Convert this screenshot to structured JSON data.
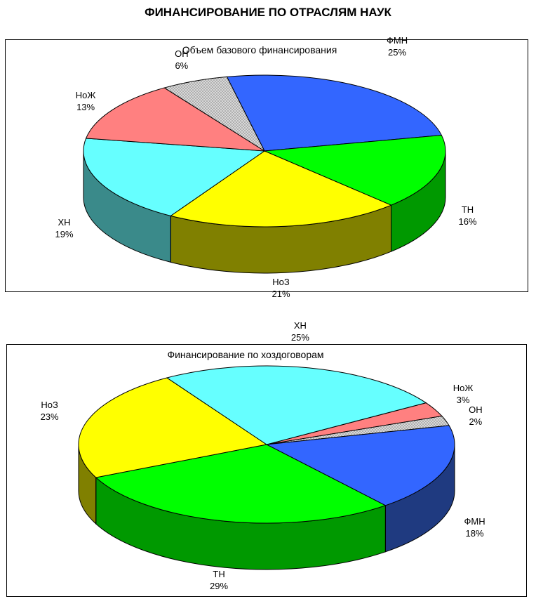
{
  "page_title": "ФИНАНСИРОВАНИЕ ПО ОТРАСЛЯМ НАУК",
  "chart_data": [
    {
      "type": "pie",
      "title": "Объем базового финансирования",
      "slices": [
        {
          "label": "ФМН",
          "value": 25,
          "pct": "25%",
          "color": "#3366ff",
          "side": "#1f3f99"
        },
        {
          "label": "ТН",
          "value": 16,
          "pct": "16%",
          "color": "#00ff00",
          "side": "#009900"
        },
        {
          "label": "НоЗ",
          "value": 21,
          "pct": "21%",
          "color": "#ffff00",
          "side": "#808000"
        },
        {
          "label": "ХН",
          "value": 19,
          "pct": "19%",
          "color": "#66ffff",
          "side": "#3a8a8a"
        },
        {
          "label": "НоЖ",
          "value": 13,
          "pct": "13%",
          "color": "#ff8080",
          "side": "#804040"
        },
        {
          "label": "ОН",
          "value": 6,
          "pct": "6%",
          "color": "#c0c0c0",
          "side": "#808080",
          "pattern": "dots"
        }
      ]
    },
    {
      "type": "pie",
      "title": "Финансирование по хоздоговорам",
      "slices": [
        {
          "label": "НоЖ",
          "value": 3,
          "pct": "3%",
          "color": "#ff8080",
          "side": "#804040"
        },
        {
          "label": "ОН",
          "value": 2,
          "pct": "2%",
          "color": "#c0c0c0",
          "side": "#808080",
          "pattern": "dots"
        },
        {
          "label": "ФМН",
          "value": 18,
          "pct": "18%",
          "color": "#3366ff",
          "side": "#1f3a80"
        },
        {
          "label": "ТН",
          "value": 29,
          "pct": "29%",
          "color": "#00ff00",
          "side": "#009900"
        },
        {
          "label": "НоЗ",
          "value": 23,
          "pct": "23%",
          "color": "#ffff00",
          "side": "#808000"
        },
        {
          "label": "ХН",
          "value": 25,
          "pct": "25%",
          "color": "#66ffff",
          "side": "#3a8a8a"
        }
      ]
    }
  ]
}
